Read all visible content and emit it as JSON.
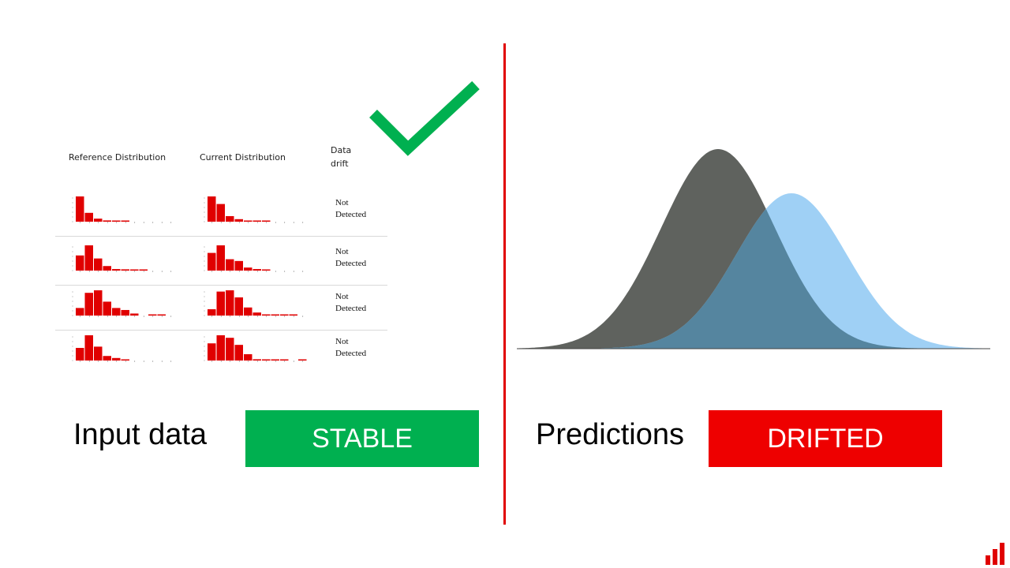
{
  "table": {
    "headers": {
      "reference": "Reference Distribution",
      "current": "Current Distribution",
      "drift_line1": "Data",
      "drift_line2": "drift"
    },
    "rows": [
      {
        "status_line1": "Not",
        "status_line2": "Detected",
        "reference_bins": [
          1.0,
          0.35,
          0.12,
          0.05,
          0.04,
          0.02,
          0,
          0,
          0,
          0,
          0
        ],
        "current_bins": [
          1.0,
          0.7,
          0.22,
          0.1,
          0.04,
          0.03,
          0.02,
          0,
          0,
          0,
          0
        ]
      },
      {
        "status_line1": "Not",
        "status_line2": "Detected",
        "reference_bins": [
          0.6,
          1.0,
          0.48,
          0.18,
          0.06,
          0.05,
          0.03,
          0.02,
          0,
          0,
          0
        ],
        "current_bins": [
          0.7,
          1.0,
          0.45,
          0.38,
          0.12,
          0.06,
          0.03,
          0,
          0,
          0,
          0
        ]
      },
      {
        "status_line1": "Not",
        "status_line2": "Detected",
        "reference_bins": [
          0.3,
          0.9,
          1.0,
          0.55,
          0.3,
          0.22,
          0.08,
          0,
          0.02,
          0.02,
          0
        ],
        "current_bins": [
          0.25,
          0.95,
          1.0,
          0.72,
          0.32,
          0.12,
          0.02,
          0.02,
          0.02,
          0.02,
          0
        ],
        "_": ""
      },
      {
        "status_line1": "Not",
        "status_line2": "Detected",
        "reference_bins": [
          0.5,
          1.0,
          0.55,
          0.18,
          0.1,
          0.02,
          0,
          0,
          0,
          0,
          0
        ],
        "current_bins": [
          0.68,
          1.0,
          0.9,
          0.62,
          0.25,
          0.05,
          0.04,
          0.04,
          0.02,
          0,
          0.02
        ]
      }
    ],
    "bar_color": "#e00000"
  },
  "left": {
    "label": "Input data",
    "badge": "STABLE",
    "badge_color": "#00b050",
    "check_color": "#00b050"
  },
  "right": {
    "label": "Predictions",
    "badge": "DRIFTED",
    "badge_color": "#ee0000",
    "reference_curve_color": "#5f625e",
    "current_curve_color": "#9fd0f5",
    "overlap_color": "#55859f"
  },
  "icons": {
    "check": "check-mark-icon",
    "logo": "bar-chart-logo-icon"
  }
}
